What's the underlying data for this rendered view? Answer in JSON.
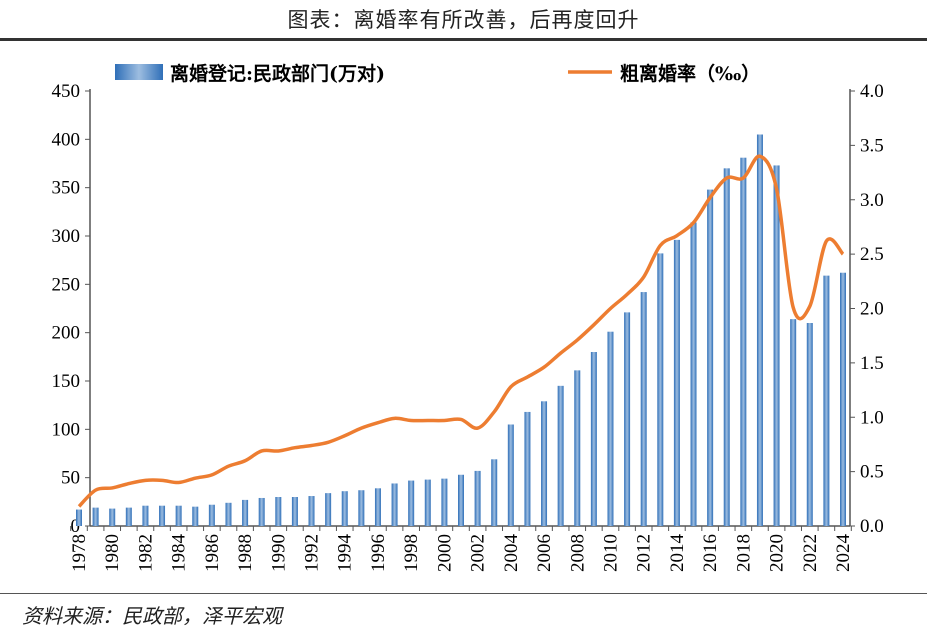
{
  "title": "图表：离婚率有所改善，后再度回升",
  "source": "资料来源：民政部，泽平宏观",
  "chart_data": {
    "type": "bar+line",
    "title": "图表：离婚率有所改善，后再度回升",
    "legend_position": "top",
    "grid": false,
    "categories": [
      1978,
      1979,
      1980,
      1981,
      1982,
      1983,
      1984,
      1985,
      1986,
      1987,
      1988,
      1989,
      1990,
      1991,
      1992,
      1993,
      1994,
      1995,
      1996,
      1997,
      1998,
      1999,
      2000,
      2001,
      2002,
      2003,
      2004,
      2005,
      2006,
      2007,
      2008,
      2009,
      2010,
      2011,
      2012,
      2013,
      2014,
      2015,
      2016,
      2017,
      2018,
      2019,
      2020,
      2021,
      2022,
      2023,
      2024
    ],
    "x_tick_labels": [
      "1978",
      "1980",
      "1982",
      "1984",
      "1986",
      "1988",
      "1990",
      "1992",
      "1994",
      "1996",
      "1998",
      "2000",
      "2002",
      "2004",
      "2006",
      "2008",
      "2010",
      "2012",
      "2014",
      "2016",
      "2018",
      "2020",
      "2022",
      "2024"
    ],
    "left_axis": {
      "ylim": [
        0,
        450
      ],
      "ticks": [
        "0",
        "50",
        "100",
        "150",
        "200",
        "250",
        "300",
        "350",
        "400",
        "450"
      ]
    },
    "right_axis": {
      "ylim": [
        0,
        4.0
      ],
      "ticks": [
        "0.0",
        "0.5",
        "1.0",
        "1.5",
        "2.0",
        "2.5",
        "3.0",
        "3.5",
        "4.0"
      ]
    },
    "series": [
      {
        "name": "离婚登记:民政部门(万对)",
        "type": "bar",
        "axis": "left",
        "color": "#4a86c8",
        "values": [
          17,
          19,
          18,
          19,
          21,
          21,
          21,
          20,
          22,
          24,
          27,
          29,
          30,
          30,
          31,
          34,
          36,
          37,
          39,
          44,
          47,
          48,
          49,
          53,
          57,
          69,
          105,
          118,
          129,
          145,
          161,
          180,
          201,
          221,
          242,
          282,
          296,
          314,
          348,
          370,
          381,
          405,
          373,
          214,
          210,
          259,
          262
        ]
      },
      {
        "name": "粗离婚率（‰）",
        "type": "line",
        "axis": "right",
        "color": "#ed7d31",
        "values": [
          0.18,
          0.33,
          0.35,
          0.39,
          0.42,
          0.42,
          0.4,
          0.44,
          0.47,
          0.55,
          0.6,
          0.69,
          0.69,
          0.72,
          0.74,
          0.77,
          0.83,
          0.9,
          0.95,
          0.99,
          0.97,
          0.97,
          0.97,
          0.98,
          0.9,
          1.05,
          1.28,
          1.37,
          1.46,
          1.59,
          1.71,
          1.85,
          2.0,
          2.13,
          2.29,
          2.58,
          2.67,
          2.79,
          3.02,
          3.2,
          3.2,
          3.4,
          3.1,
          2.01,
          2.02,
          2.62,
          2.5
        ]
      }
    ]
  }
}
